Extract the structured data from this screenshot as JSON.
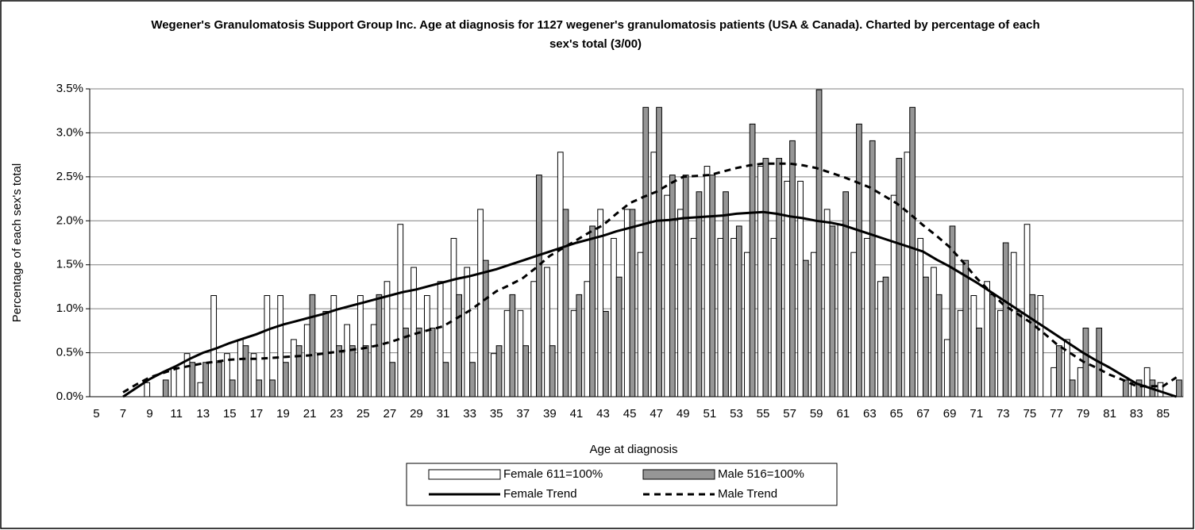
{
  "chart_data": {
    "type": "bar",
    "title": "Wegener's Granulomatosis Support Group Inc. Age at diagnosis for 1127 wegener's granulomatosis patients (USA & Canada). Charted by percentage of each sex's total (3/00)",
    "x_label": "Age at diagnosis",
    "y_label": "Percentage of each sex's total",
    "categories": [
      "5",
      null,
      "7",
      null,
      "9",
      null,
      "11",
      null,
      "13",
      null,
      "15",
      null,
      "17",
      null,
      "19",
      null,
      "21",
      null,
      "23",
      null,
      "25",
      null,
      "27",
      null,
      "29",
      null,
      "31",
      null,
      "33",
      null,
      "35",
      null,
      "37",
      null,
      "39",
      null,
      "41",
      null,
      "43",
      null,
      "45",
      null,
      "47",
      null,
      "49",
      null,
      "51",
      null,
      "53",
      null,
      "55",
      null,
      "57",
      null,
      "59",
      null,
      "61",
      null,
      "63",
      null,
      "65",
      null,
      "67",
      null,
      "69",
      null,
      "71",
      null,
      "73",
      null,
      "75",
      null,
      "77",
      null,
      "79",
      null,
      "81",
      null,
      "83",
      null,
      "85",
      null
    ],
    "ylim": [
      0,
      3.5
    ],
    "yticks": [
      {
        "value": 0,
        "label": "0.0%"
      },
      {
        "value": 0.5,
        "label": "0.5%"
      },
      {
        "value": 1,
        "label": "1.0%"
      },
      {
        "value": 1.5,
        "label": "1.5%"
      },
      {
        "value": 2,
        "label": "2.0%"
      },
      {
        "value": 2.5,
        "label": "2.5%"
      },
      {
        "value": 3,
        "label": "3.0%"
      },
      {
        "value": 3.5,
        "label": "3.5%"
      }
    ],
    "grid": true,
    "legend": "bottom",
    "series": [
      {
        "name": "Female 611=100%",
        "type": "bar",
        "color": "#ffffff",
        "values": [
          0,
          0,
          0,
          0,
          0.16,
          0,
          0.33,
          0.49,
          0.16,
          1.15,
          0.49,
          0.65,
          0.49,
          1.15,
          1.15,
          0.65,
          0.82,
          0.49,
          1.15,
          0.82,
          1.15,
          0.82,
          1.31,
          1.96,
          1.47,
          1.15,
          1.31,
          1.8,
          1.47,
          2.13,
          0.49,
          0.98,
          0.98,
          1.31,
          1.47,
          2.78,
          0.98,
          1.31,
          2.13,
          1.8,
          2.13,
          1.64,
          2.78,
          2.29,
          2.13,
          1.8,
          2.62,
          1.8,
          1.8,
          1.64,
          2.62,
          1.8,
          2.45,
          2.45,
          1.64,
          2.13,
          1.96,
          1.64,
          1.8,
          1.31,
          2.29,
          2.78,
          1.8,
          1.47,
          0.65,
          0.98,
          1.15,
          1.31,
          0.98,
          1.64,
          1.96,
          1.15,
          0.33,
          0.65,
          0.33,
          0,
          0,
          0,
          0.16,
          0.33,
          0.16,
          0
        ]
      },
      {
        "name": "Male 516=100%",
        "type": "bar",
        "color": "#969696",
        "values": [
          0,
          0,
          0,
          0,
          0,
          0.19,
          0,
          0.39,
          0.39,
          0.39,
          0.19,
          0.58,
          0.19,
          0.19,
          0.39,
          0.58,
          1.16,
          0.97,
          0.58,
          0.58,
          0.58,
          1.16,
          0.39,
          0.78,
          0.78,
          0.78,
          0.39,
          1.16,
          0.39,
          1.55,
          0.58,
          1.16,
          0.58,
          2.52,
          0.58,
          2.13,
          1.16,
          1.94,
          0.97,
          1.36,
          2.13,
          3.29,
          3.29,
          2.52,
          2.52,
          2.33,
          2.52,
          2.33,
          1.94,
          3.1,
          2.71,
          2.71,
          2.91,
          1.55,
          3.49,
          1.94,
          2.33,
          3.1,
          2.91,
          1.36,
          2.71,
          3.29,
          1.36,
          1.16,
          1.94,
          1.55,
          0.78,
          1.16,
          1.75,
          0.97,
          1.16,
          0,
          0.58,
          0.19,
          0.78,
          0.78,
          0,
          0.19,
          0.19,
          0.19,
          0,
          0.19
        ]
      },
      {
        "name": "Female Trend",
        "type": "line",
        "color": "#000000",
        "dashed": false,
        "values": [
          null,
          null,
          0,
          0.1,
          0.2,
          0.28,
          0.35,
          0.43,
          0.5,
          0.55,
          0.61,
          0.66,
          0.71,
          0.77,
          0.82,
          0.86,
          0.9,
          0.94,
          0.99,
          1.03,
          1.07,
          1.11,
          1.15,
          1.19,
          1.22,
          1.26,
          1.3,
          1.34,
          1.37,
          1.41,
          1.45,
          1.5,
          1.55,
          1.6,
          1.65,
          1.7,
          1.75,
          1.79,
          1.83,
          1.88,
          1.92,
          1.96,
          2.0,
          2.01,
          2.03,
          2.04,
          2.05,
          2.06,
          2.08,
          2.09,
          2.1,
          2.08,
          2.05,
          2.03,
          2.0,
          1.98,
          1.95,
          1.9,
          1.85,
          1.8,
          1.75,
          1.7,
          1.65,
          1.56,
          1.48,
          1.39,
          1.3,
          1.2,
          1.1,
          1.0,
          0.9,
          0.8,
          0.7,
          0.6,
          0.5,
          0.41,
          0.33,
          0.24,
          0.15,
          0.1,
          0.05,
          0
        ]
      },
      {
        "name": "Male Trend",
        "type": "line",
        "color": "#000000",
        "dashed": true,
        "values": [
          null,
          null,
          0.05,
          0.14,
          0.22,
          0.27,
          0.32,
          0.35,
          0.38,
          0.4,
          0.42,
          0.43,
          0.43,
          0.44,
          0.45,
          0.46,
          0.47,
          0.49,
          0.51,
          0.53,
          0.55,
          0.58,
          0.62,
          0.67,
          0.72,
          0.76,
          0.8,
          0.89,
          0.98,
          1.09,
          1.2,
          1.27,
          1.35,
          1.47,
          1.6,
          1.69,
          1.78,
          1.87,
          1.95,
          2.08,
          2.2,
          2.27,
          2.33,
          2.42,
          2.5,
          2.51,
          2.52,
          2.56,
          2.6,
          2.63,
          2.65,
          2.65,
          2.65,
          2.63,
          2.6,
          2.55,
          2.5,
          2.44,
          2.38,
          2.29,
          2.2,
          2.08,
          1.95,
          1.83,
          1.7,
          1.53,
          1.35,
          1.2,
          1.05,
          0.95,
          0.85,
          0.73,
          0.6,
          0.5,
          0.4,
          0.33,
          0.25,
          0.19,
          0.12,
          0.12,
          0.12,
          0.22
        ]
      }
    ]
  }
}
